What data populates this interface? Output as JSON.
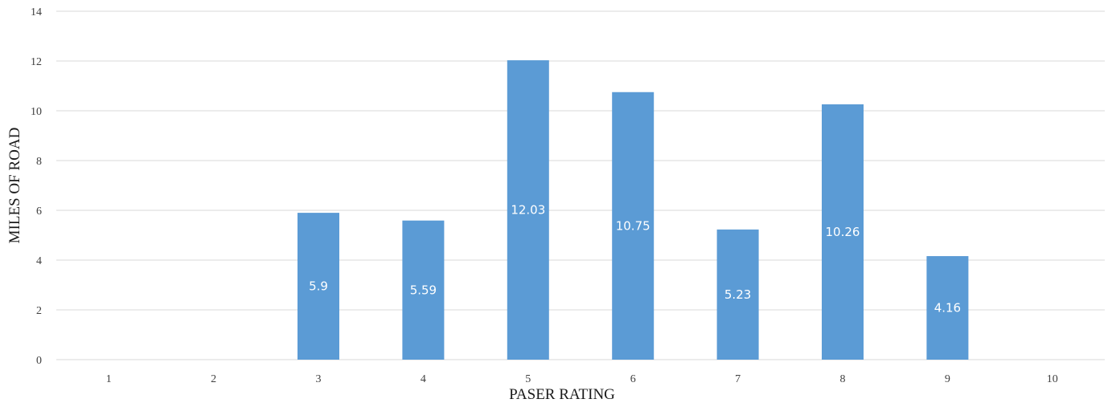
{
  "chart_data": {
    "type": "bar",
    "title": "",
    "xlabel": "PASER RATING",
    "ylabel": "MILES OF ROAD",
    "categories": [
      "1",
      "2",
      "3",
      "4",
      "5",
      "6",
      "7",
      "8",
      "9",
      "10"
    ],
    "values": [
      0,
      0,
      5.9,
      5.59,
      12.03,
      10.75,
      5.23,
      10.26,
      4.16,
      0
    ],
    "data_labels": [
      "",
      "",
      "5.9",
      "5.59",
      "12.03",
      "10.75",
      "5.23",
      "10.26",
      "4.16",
      ""
    ],
    "ylim": [
      0,
      14
    ],
    "yticks": [
      "0",
      "2",
      "4",
      "6",
      "8",
      "10",
      "12",
      "14"
    ],
    "grid": true,
    "legend": "none",
    "bar_color": "#5b9bd5"
  }
}
